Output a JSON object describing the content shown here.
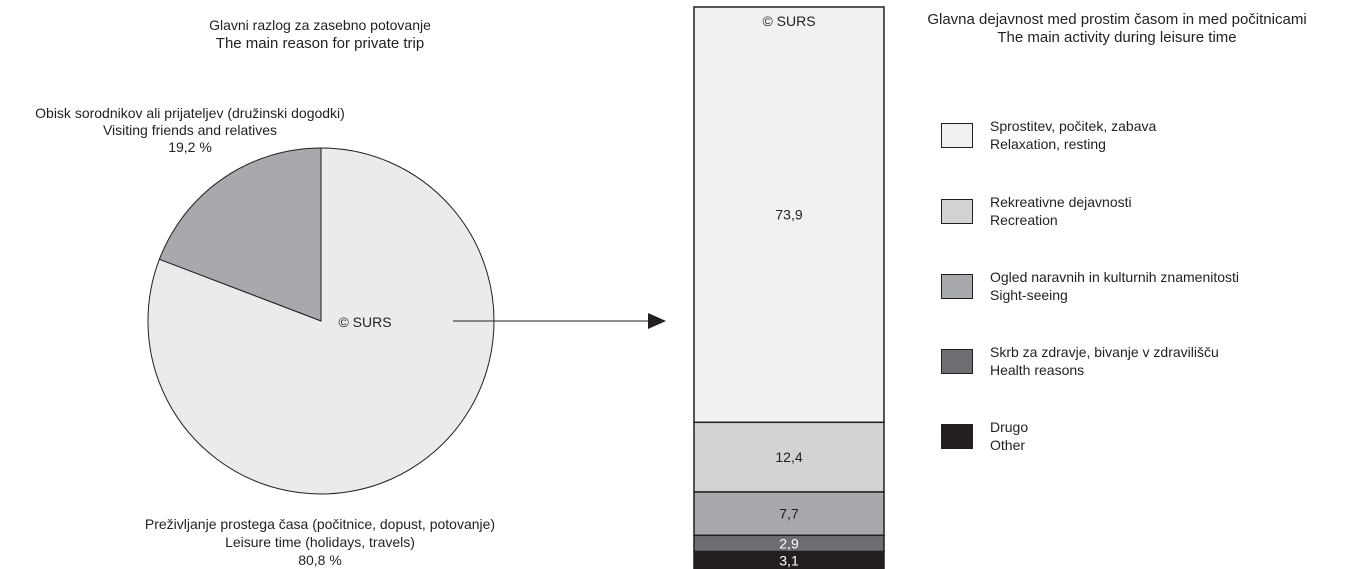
{
  "chart_data": [
    {
      "type": "pie",
      "title": "Glavni razlog za zasebno potovanje",
      "subtitle": "The main reason for private trip",
      "watermark": "© SURS",
      "slices": [
        {
          "label_sl": "Obisk sorodnikov ali prijateljev (družinski dogodki)",
          "label_en": "Visiting friends and relatives",
          "value_text": "19,2 %",
          "value": 19.2,
          "color": "#a7a9ac"
        },
        {
          "label_sl": "Preživljanje prostega časa (počitnice, dopust, potovanje)",
          "label_en": "Leisure time (holidays, travels)",
          "value_text": "80,8 %",
          "value": 80.8,
          "color": "#ebebeb"
        }
      ]
    },
    {
      "type": "bar",
      "stacked": true,
      "title": "Glavna dejavnost med prostim časom in med počitnicami",
      "subtitle": "The main activity during leisure time",
      "watermark": "© SURS",
      "series": [
        {
          "name_sl": "Sprostitev, počitek, zabava",
          "name_en": "Relaxation, resting",
          "value": 73.9,
          "value_text": "73,9",
          "color": "#f1f1f2",
          "label_color": "#231f20"
        },
        {
          "name_sl": "Rekreativne dejavnosti",
          "name_en": "Recreation",
          "value": 12.4,
          "value_text": "12,4",
          "color": "#d1d3d4",
          "label_color": "#231f20"
        },
        {
          "name_sl": "Ogled naravnih in kulturnih znamenitosti",
          "name_en": "Sight-seeing",
          "value": 7.7,
          "value_text": "7,7",
          "color": "#a7a9ac",
          "label_color": "#231f20"
        },
        {
          "name_sl": "Skrb za zdravje, bivanje v zdravilišču",
          "name_en": "Health reasons",
          "value": 2.9,
          "value_text": "2,9",
          "color": "#6d6e71",
          "label_color": "#ffffff"
        },
        {
          "name_sl": "Drugo",
          "name_en": "Other",
          "value": 3.1,
          "value_text": "3,1",
          "color": "#231f20",
          "label_color": "#ffffff"
        }
      ]
    }
  ]
}
